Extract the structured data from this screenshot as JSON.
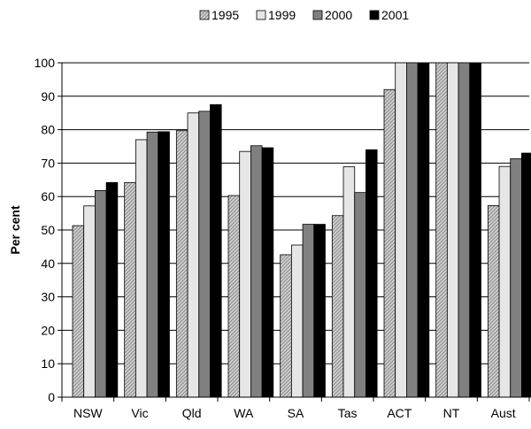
{
  "chart_data": {
    "type": "bar",
    "title": "",
    "xlabel": "",
    "ylabel": "Per cent",
    "ylim": [
      0,
      100
    ],
    "yticks": [
      0,
      10,
      20,
      30,
      40,
      50,
      60,
      70,
      80,
      90,
      100
    ],
    "grid": true,
    "legend": "top",
    "categories": [
      "NSW",
      "Vic",
      "Qld",
      "WA",
      "SA",
      "Tas",
      "ACT",
      "NT",
      "Aust"
    ],
    "series": [
      {
        "name": "1995",
        "pattern": "diagonal-hatch",
        "color": "#b4b4b4",
        "values": [
          51.3,
          64.2,
          79.7,
          60.3,
          42.6,
          54.3,
          92.0,
          100,
          57.3
        ]
      },
      {
        "name": "1999",
        "pattern": "light",
        "color": "#e6e6e6",
        "values": [
          57.2,
          77.0,
          85.0,
          73.5,
          45.5,
          68.9,
          100,
          100,
          69.0
        ]
      },
      {
        "name": "2000",
        "pattern": "solid",
        "color": "#808080",
        "values": [
          61.8,
          79.3,
          85.5,
          75.2,
          51.7,
          61.2,
          100,
          100,
          71.3
        ]
      },
      {
        "name": "2001",
        "pattern": "solid",
        "color": "#000000",
        "values": [
          64.2,
          79.4,
          87.5,
          74.6,
          51.7,
          74.0,
          100,
          100,
          73.0
        ]
      }
    ]
  }
}
